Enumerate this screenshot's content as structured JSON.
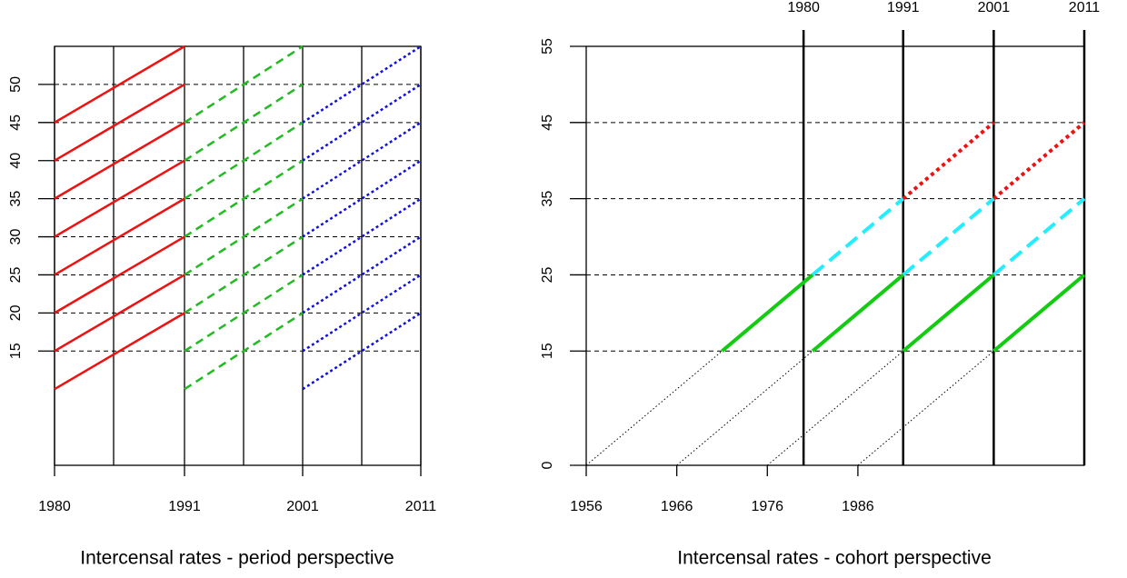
{
  "chart_data": [
    {
      "type": "lexis",
      "title": "Intercensal rates - period perspective",
      "xlim": [
        1980,
        2011
      ],
      "xticks": [
        1980,
        1991,
        2001,
        2011
      ],
      "ylim": [
        0,
        55
      ],
      "yticks": [
        15,
        20,
        25,
        30,
        35,
        40,
        45,
        50
      ],
      "grid": true,
      "vlines": [
        1980,
        1985,
        1991,
        1996,
        2001,
        2006,
        2011
      ],
      "series": [
        {
          "color": "#ee1111",
          "dash": "solid",
          "x": [
            1980,
            1991
          ],
          "starts": [
            10,
            15,
            20,
            25,
            30,
            35,
            40,
            45
          ],
          "rise": 10
        },
        {
          "color": "#22bb22",
          "dash": "dashed",
          "x": [
            1991,
            2001
          ],
          "starts": [
            10,
            15,
            20,
            25,
            30,
            35,
            40,
            45
          ],
          "rise": 10
        },
        {
          "color": "#1111dd",
          "dash": "dotted",
          "x": [
            2001,
            2011
          ],
          "starts": [
            10,
            15,
            20,
            25,
            30,
            35,
            40,
            45
          ],
          "rise": 10
        }
      ]
    },
    {
      "type": "cohort",
      "title": "Intercensal rates - cohort perspective",
      "xlim": [
        1956,
        2011
      ],
      "xticks": [
        1956,
        1966,
        1976,
        1986
      ],
      "x2ticks": [
        1980,
        1991,
        2001,
        2011
      ],
      "ylim": [
        0,
        55
      ],
      "yticks": [
        0,
        15,
        25,
        35,
        45,
        55
      ],
      "grid": true,
      "series": [
        {
          "color": "#000000",
          "dash": "dotted",
          "width": 1,
          "ages": [
            0,
            15
          ],
          "cohorts": [
            1956,
            1966,
            1976,
            1986
          ]
        },
        {
          "color": "#11cc11",
          "dash": "solid",
          "width": 4,
          "ages": [
            15,
            25
          ],
          "cohorts": [
            1956,
            1966,
            1976,
            1986
          ]
        },
        {
          "color": "#22eeff",
          "dash": "dashed",
          "width": 4,
          "ages": [
            25,
            35
          ],
          "cohorts": [
            1956,
            1966,
            1976
          ]
        },
        {
          "color": "#ee1111",
          "dash": "dotted",
          "width": 4,
          "ages": [
            35,
            45
          ],
          "cohorts": [
            1956,
            1966
          ]
        }
      ]
    }
  ]
}
